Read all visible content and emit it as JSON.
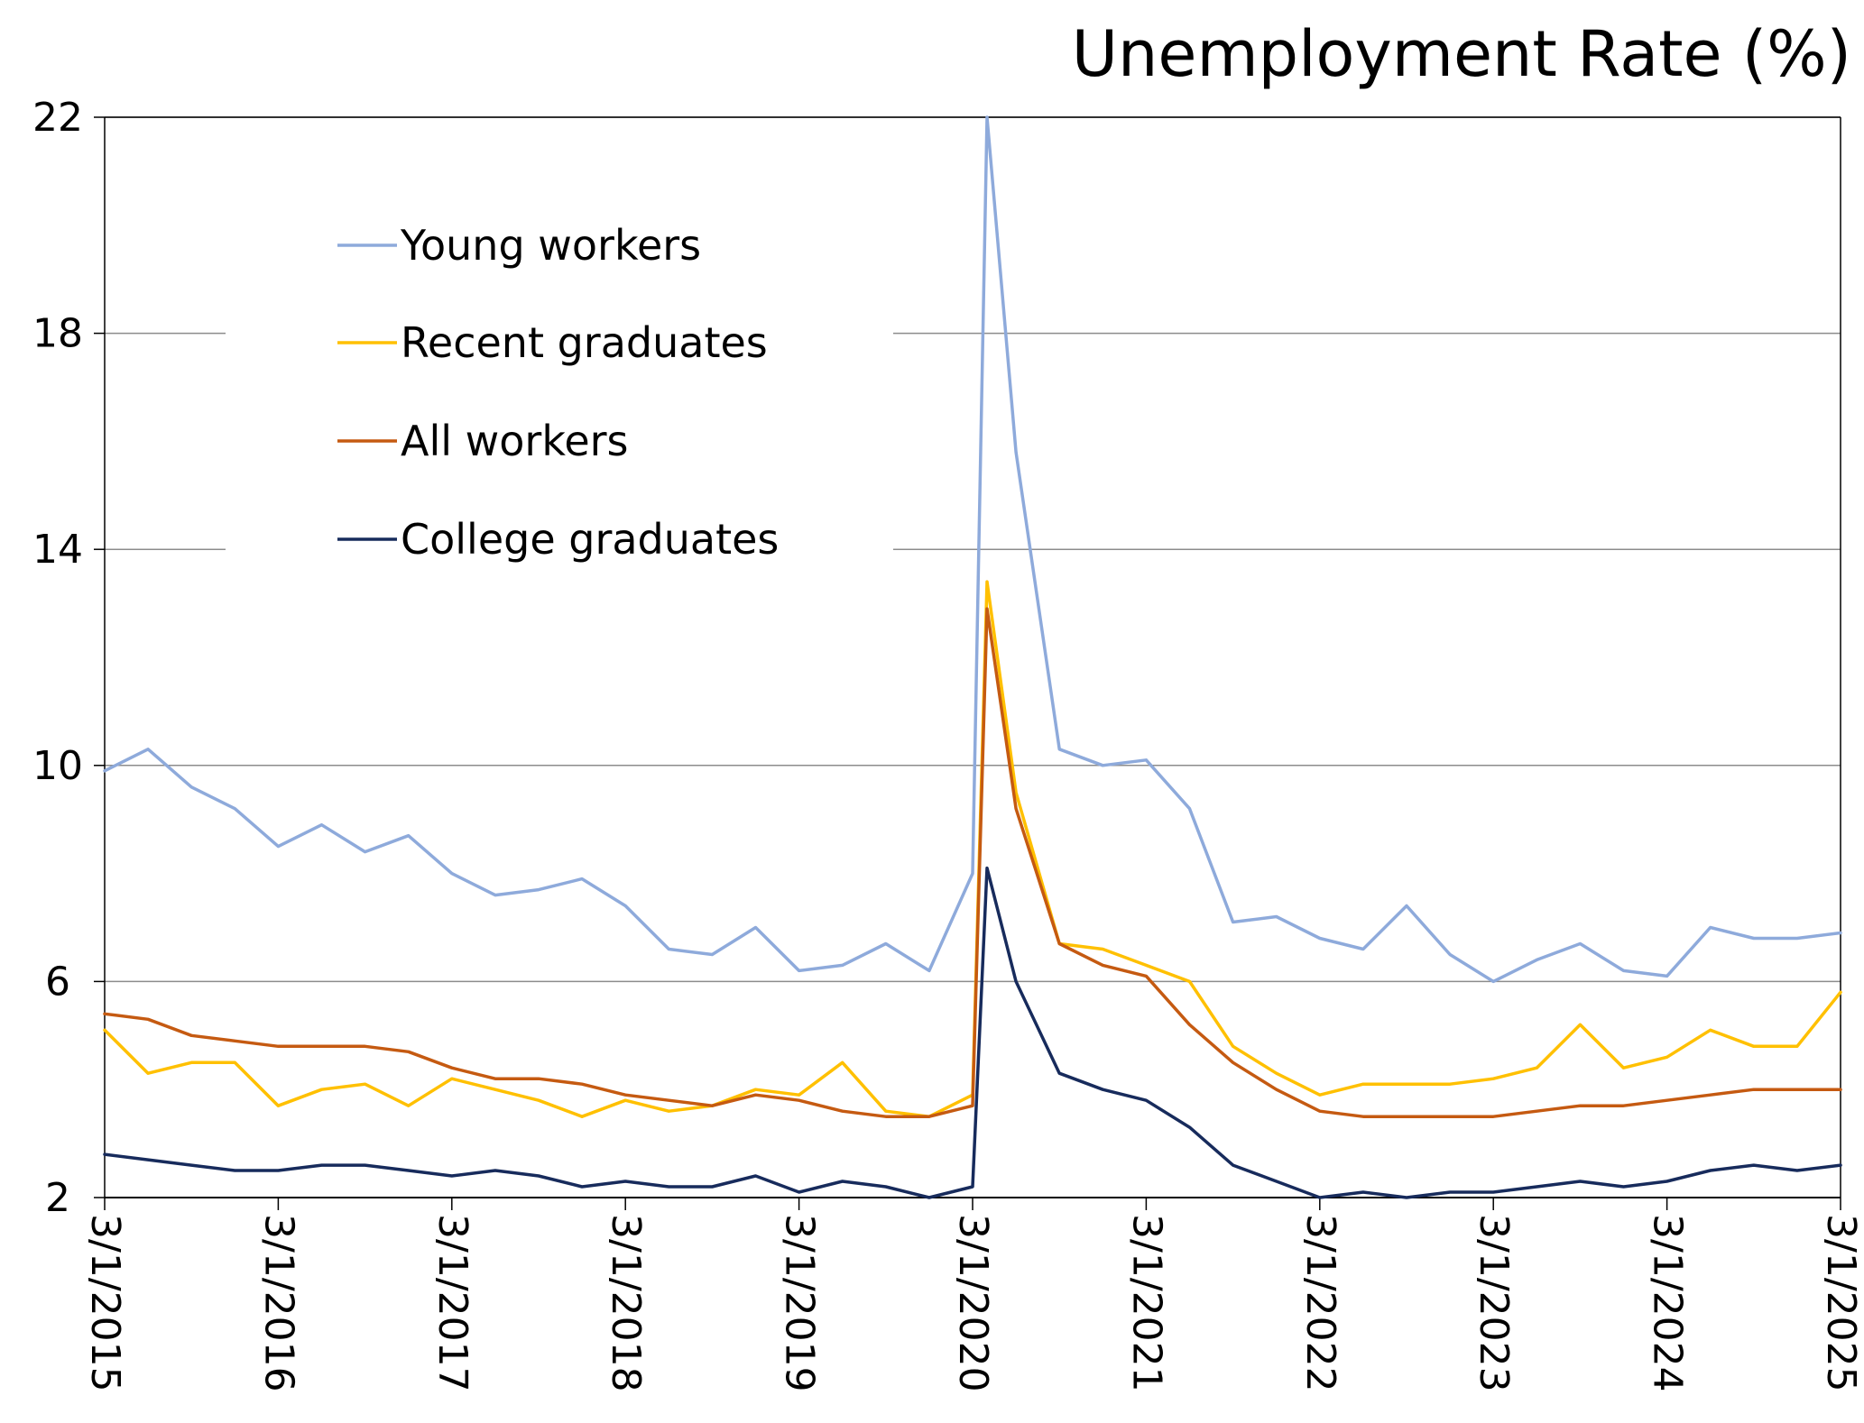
{
  "chart_data": {
    "type": "line",
    "title": "Unemployment Rate (%)",
    "xlabel": "",
    "ylabel": "",
    "ylim": [
      2,
      22
    ],
    "yticks": [
      "2",
      "6",
      "10",
      "14",
      "18",
      "22"
    ],
    "xlim": [
      "3/1/2015",
      "3/1/2025"
    ],
    "xticks": [
      "3/1/2015",
      "3/1/2016",
      "3/1/2017",
      "3/1/2018",
      "3/1/2019",
      "3/1/2020",
      "3/1/2021",
      "3/1/2022",
      "3/1/2023",
      "3/1/2024",
      "3/1/2025"
    ],
    "grid": "horizontal",
    "legend_position": "upper-left",
    "series": [
      {
        "name": "Young workers",
        "color": "#8eaadb",
        "x": [
          "2015-03",
          "2015-06",
          "2015-09",
          "2015-12",
          "2016-03",
          "2016-06",
          "2016-09",
          "2016-12",
          "2017-03",
          "2017-06",
          "2017-09",
          "2017-12",
          "2018-03",
          "2018-06",
          "2018-09",
          "2018-12",
          "2019-03",
          "2019-06",
          "2019-09",
          "2019-12",
          "2020-03",
          "2020-04",
          "2020-06",
          "2020-09",
          "2020-12",
          "2021-03",
          "2021-06",
          "2021-09",
          "2021-12",
          "2022-03",
          "2022-06",
          "2022-09",
          "2022-12",
          "2023-03",
          "2023-06",
          "2023-09",
          "2023-12",
          "2024-03",
          "2024-06",
          "2024-09",
          "2024-12",
          "2025-03"
        ],
        "values": [
          9.9,
          10.3,
          9.6,
          9.2,
          8.5,
          8.9,
          8.4,
          8.7,
          8.0,
          7.6,
          7.7,
          7.9,
          7.4,
          6.6,
          6.5,
          7.0,
          6.2,
          6.3,
          6.7,
          6.2,
          8.0,
          22.0,
          15.8,
          10.3,
          10.0,
          10.1,
          9.2,
          7.1,
          7.2,
          6.8,
          6.6,
          7.4,
          6.5,
          6.0,
          6.4,
          6.7,
          6.2,
          6.1,
          7.0,
          6.8,
          6.8,
          6.9
        ]
      },
      {
        "name": "Recent graduates",
        "color": "#ffc000",
        "x": [
          "2015-03",
          "2015-06",
          "2015-09",
          "2015-12",
          "2016-03",
          "2016-06",
          "2016-09",
          "2016-12",
          "2017-03",
          "2017-06",
          "2017-09",
          "2017-12",
          "2018-03",
          "2018-06",
          "2018-09",
          "2018-12",
          "2019-03",
          "2019-06",
          "2019-09",
          "2019-12",
          "2020-03",
          "2020-04",
          "2020-06",
          "2020-09",
          "2020-12",
          "2021-03",
          "2021-06",
          "2021-09",
          "2021-12",
          "2022-03",
          "2022-06",
          "2022-09",
          "2022-12",
          "2023-03",
          "2023-06",
          "2023-09",
          "2023-12",
          "2024-03",
          "2024-06",
          "2024-09",
          "2024-12",
          "2025-03"
        ],
        "values": [
          5.1,
          4.3,
          4.5,
          4.5,
          3.7,
          4.0,
          4.1,
          3.7,
          4.2,
          4.0,
          3.8,
          3.5,
          3.8,
          3.6,
          3.7,
          4.0,
          3.9,
          4.5,
          3.6,
          3.5,
          3.9,
          13.4,
          9.5,
          6.7,
          6.6,
          6.3,
          6.0,
          4.8,
          4.3,
          3.9,
          4.1,
          4.1,
          4.1,
          4.2,
          4.4,
          5.2,
          4.4,
          4.6,
          5.1,
          4.8,
          4.8,
          5.8
        ]
      },
      {
        "name": "All workers",
        "color": "#c55a11",
        "x": [
          "2015-03",
          "2015-06",
          "2015-09",
          "2015-12",
          "2016-03",
          "2016-06",
          "2016-09",
          "2016-12",
          "2017-03",
          "2017-06",
          "2017-09",
          "2017-12",
          "2018-03",
          "2018-06",
          "2018-09",
          "2018-12",
          "2019-03",
          "2019-06",
          "2019-09",
          "2019-12",
          "2020-03",
          "2020-04",
          "2020-06",
          "2020-09",
          "2020-12",
          "2021-03",
          "2021-06",
          "2021-09",
          "2021-12",
          "2022-03",
          "2022-06",
          "2022-09",
          "2022-12",
          "2023-03",
          "2023-06",
          "2023-09",
          "2023-12",
          "2024-03",
          "2024-06",
          "2024-09",
          "2024-12",
          "2025-03"
        ],
        "values": [
          5.4,
          5.3,
          5.0,
          4.9,
          4.8,
          4.8,
          4.8,
          4.7,
          4.4,
          4.2,
          4.2,
          4.1,
          3.9,
          3.8,
          3.7,
          3.9,
          3.8,
          3.6,
          3.5,
          3.5,
          3.7,
          12.9,
          9.2,
          6.7,
          6.3,
          6.1,
          5.2,
          4.5,
          4.0,
          3.6,
          3.5,
          3.5,
          3.5,
          3.5,
          3.6,
          3.7,
          3.7,
          3.8,
          3.9,
          4.0,
          4.0,
          4.0
        ]
      },
      {
        "name": "College graduates",
        "color": "#172b5c",
        "x": [
          "2015-03",
          "2015-06",
          "2015-09",
          "2015-12",
          "2016-03",
          "2016-06",
          "2016-09",
          "2016-12",
          "2017-03",
          "2017-06",
          "2017-09",
          "2017-12",
          "2018-03",
          "2018-06",
          "2018-09",
          "2018-12",
          "2019-03",
          "2019-06",
          "2019-09",
          "2019-12",
          "2020-03",
          "2020-04",
          "2020-06",
          "2020-09",
          "2020-12",
          "2021-03",
          "2021-06",
          "2021-09",
          "2021-12",
          "2022-03",
          "2022-06",
          "2022-09",
          "2022-12",
          "2023-03",
          "2023-06",
          "2023-09",
          "2023-12",
          "2024-03",
          "2024-06",
          "2024-09",
          "2024-12",
          "2025-03"
        ],
        "values": [
          2.8,
          2.7,
          2.6,
          2.5,
          2.5,
          2.6,
          2.6,
          2.5,
          2.4,
          2.5,
          2.4,
          2.2,
          2.3,
          2.2,
          2.2,
          2.4,
          2.1,
          2.3,
          2.2,
          2.0,
          2.2,
          8.1,
          6.0,
          4.3,
          4.0,
          3.8,
          3.3,
          2.6,
          2.3,
          2.0,
          2.1,
          2.0,
          2.1,
          2.1,
          2.2,
          2.3,
          2.2,
          2.3,
          2.5,
          2.6,
          2.5,
          2.6
        ]
      }
    ]
  }
}
